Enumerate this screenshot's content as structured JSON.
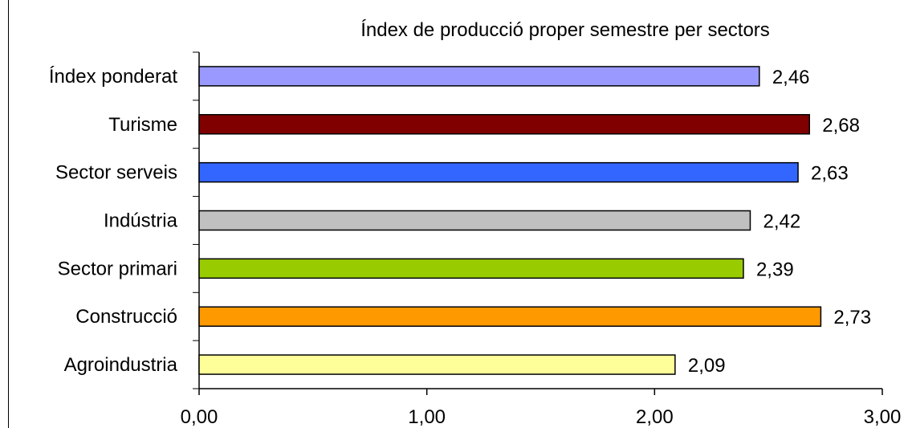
{
  "chart_data": {
    "type": "bar",
    "orientation": "horizontal",
    "title": "Índex de producció proper semestre per sectors",
    "xlabel": "",
    "ylabel": "",
    "categories": [
      "Índex ponderat",
      "Turisme",
      "Sector serveis",
      "Indústria",
      "Sector primari",
      "Construcció",
      "Agroindustria"
    ],
    "values": [
      2.46,
      2.68,
      2.63,
      2.42,
      2.39,
      2.73,
      2.09
    ],
    "value_labels": [
      "2,46",
      "2,68",
      "2,63",
      "2,42",
      "2,39",
      "2,73",
      "2,09"
    ],
    "colors": [
      "#9999ff",
      "#800000",
      "#3366ff",
      "#c0c0c0",
      "#99cc00",
      "#ff9900",
      "#ffff99"
    ],
    "xlim": [
      0,
      3
    ],
    "x_ticks": [
      0,
      1,
      2,
      3
    ],
    "x_tick_labels": [
      "0,00",
      "1,00",
      "2,00",
      "3,00"
    ],
    "grid": false,
    "legend": "none"
  }
}
